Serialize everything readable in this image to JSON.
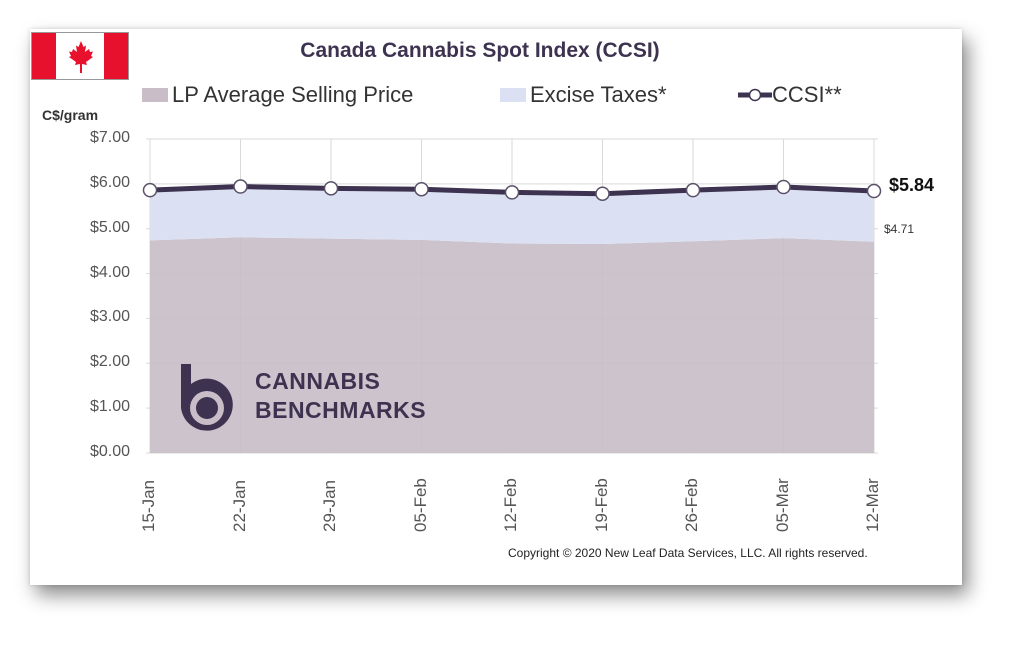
{
  "title": "Canada Cannabis Spot Index (CCSI)",
  "y_axis_label": "C$/gram",
  "legend": [
    {
      "label": "LP Average Selling Price",
      "color": "#c9bec8"
    },
    {
      "label": "Excise Taxes*",
      "color": "#dbe1f3"
    },
    {
      "label": "CCSI**",
      "color": "#3d3350"
    }
  ],
  "end_labels": {
    "ccsi": "$5.84",
    "lp": "$4.71"
  },
  "copyright": "Copyright © 2020 New Leaf Data Services, LLC. All rights reserved.",
  "logo": {
    "line1": "CANNABIS",
    "line2": "BENCHMARKS"
  },
  "chart_data": {
    "type": "area",
    "title": "Canada Cannabis Spot Index (CCSI)",
    "ylabel": "C$/gram",
    "ylim": [
      0,
      7
    ],
    "y_ticks": [
      "$0.00",
      "$1.00",
      "$2.00",
      "$3.00",
      "$4.00",
      "$5.00",
      "$6.00",
      "$7.00"
    ],
    "categories": [
      "15-Jan",
      "22-Jan",
      "29-Jan",
      "05-Feb",
      "12-Feb",
      "19-Feb",
      "26-Feb",
      "05-Mar",
      "12-Mar"
    ],
    "grid": true,
    "legend_position": "top",
    "series": [
      {
        "name": "LP Average Selling Price",
        "type": "area",
        "color": "#c9bec8",
        "values": [
          4.74,
          4.81,
          4.78,
          4.75,
          4.67,
          4.66,
          4.72,
          4.79,
          4.71
        ]
      },
      {
        "name": "Excise Taxes*",
        "type": "area",
        "color": "#dbe1f3",
        "values": [
          1.12,
          1.13,
          1.12,
          1.13,
          1.14,
          1.12,
          1.14,
          1.14,
          1.13
        ]
      },
      {
        "name": "CCSI**",
        "type": "line",
        "color": "#3d3350",
        "values": [
          5.86,
          5.94,
          5.9,
          5.88,
          5.81,
          5.78,
          5.86,
          5.93,
          5.84
        ]
      }
    ]
  }
}
